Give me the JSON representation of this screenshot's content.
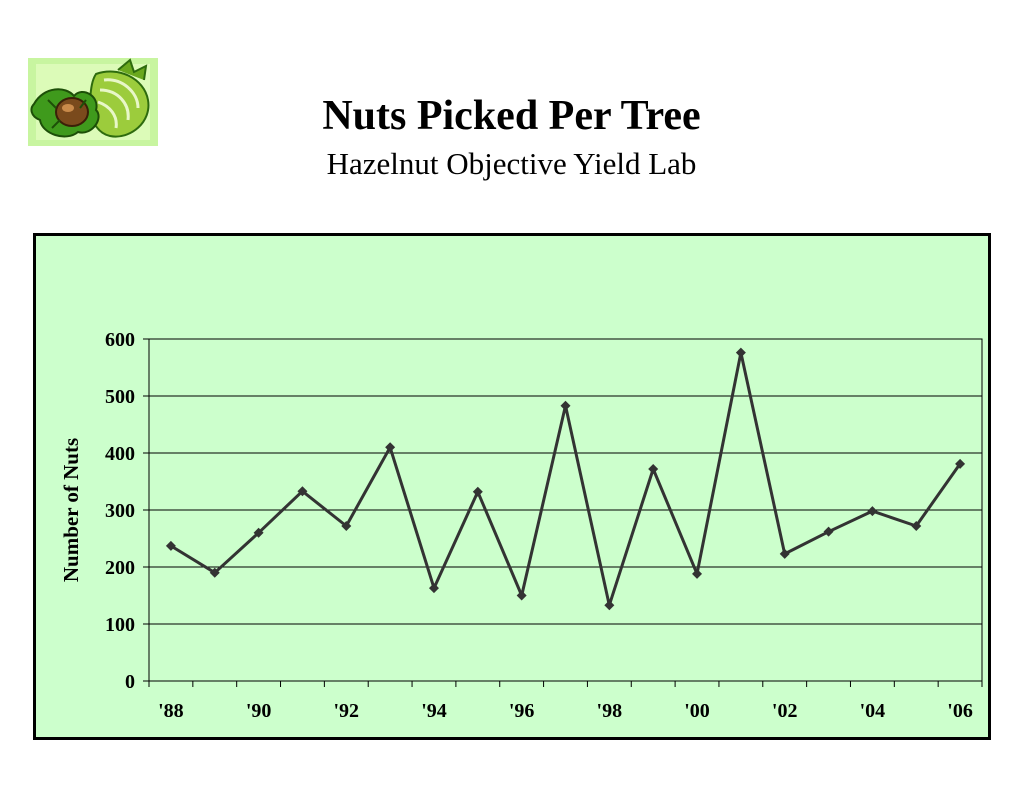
{
  "header": {
    "title": "Nuts Picked Per Tree",
    "subtitle": "Hazelnut Objective Yield Lab",
    "logo_icon": "hazelnut-clipart-icon"
  },
  "colors": {
    "plot_background": "#ccffcc",
    "line": "#333333",
    "logo_background": "#c8f5a0"
  },
  "chart_data": {
    "type": "line",
    "title": "Nuts Picked Per Tree",
    "subtitle": "Hazelnut Objective Yield Lab",
    "xlabel": "",
    "ylabel": "Number of Nuts",
    "x_tick_labels": [
      "'88",
      "'90",
      "'92",
      "'94",
      "'96",
      "'98",
      "'00",
      "'02",
      "'04",
      "'06"
    ],
    "y_ticks": [
      0,
      100,
      200,
      300,
      400,
      500,
      600
    ],
    "ylim": [
      0,
      600
    ],
    "grid": "horizontal",
    "legend": "none",
    "series": [
      {
        "x": [
          "1988",
          "1989",
          "1990",
          "1991",
          "1992",
          "1993",
          "1994",
          "1995",
          "1996",
          "1997",
          "1998",
          "1999",
          "2000",
          "2001",
          "2002",
          "2003",
          "2004",
          "2005",
          "2006"
        ],
        "values": [
          237,
          190,
          260,
          333,
          272,
          410,
          163,
          332,
          150,
          483,
          133,
          372,
          188,
          576,
          223,
          262,
          298,
          272,
          381
        ],
        "marker": "diamond"
      }
    ]
  }
}
